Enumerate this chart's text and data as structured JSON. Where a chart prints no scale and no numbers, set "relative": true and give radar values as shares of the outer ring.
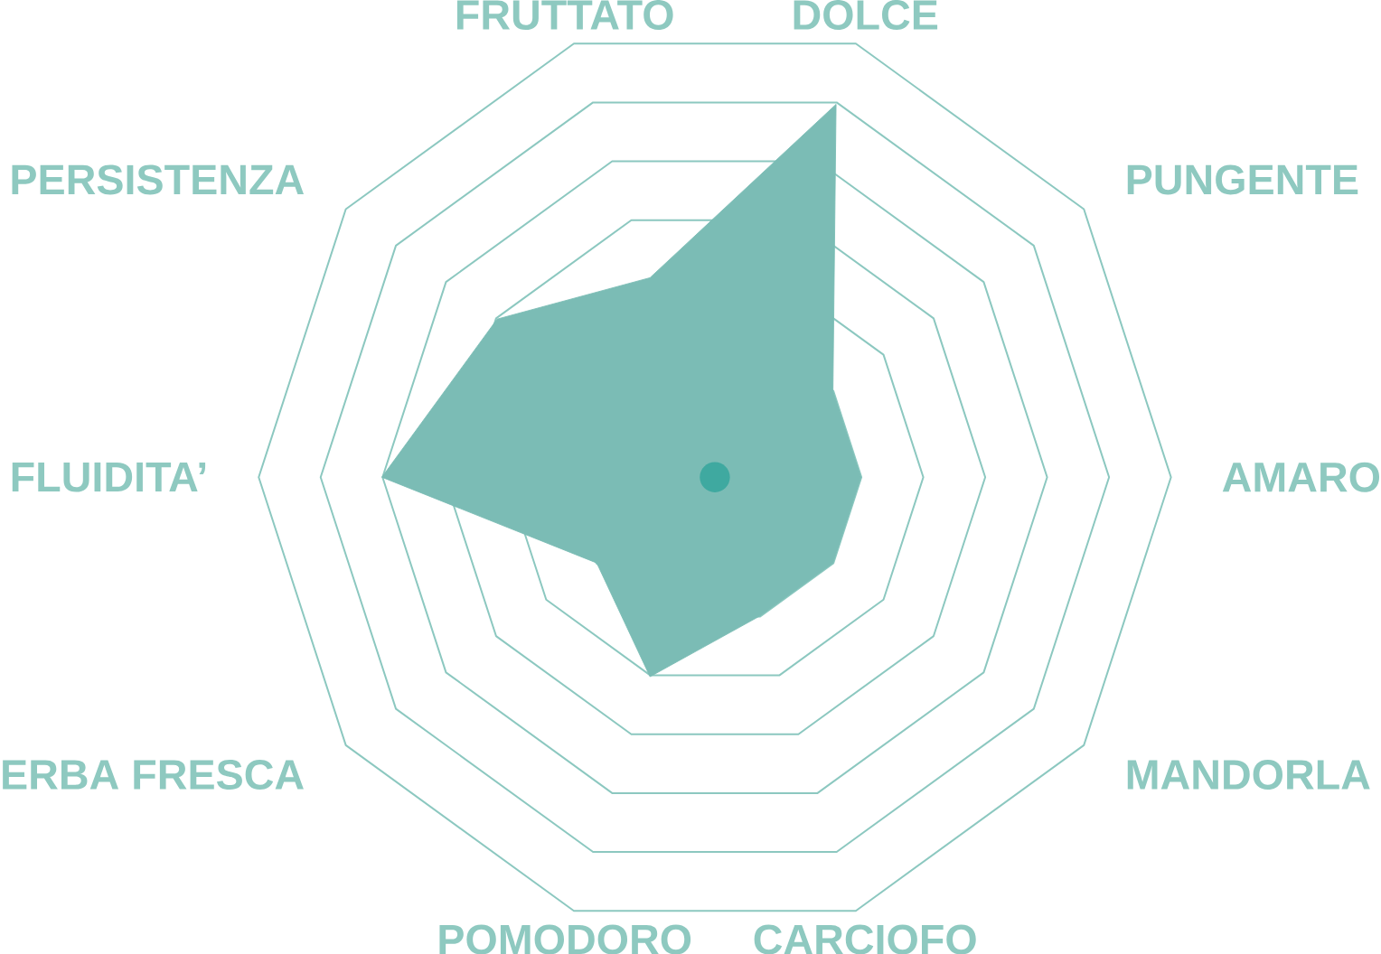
{
  "chart_data": {
    "type": "radar",
    "relative": true,
    "grid": true,
    "categories": [
      "DOLCE",
      "PUNGENTE",
      "AMARO",
      "MANDORLA",
      "CARCIOFO",
      "POMODORO",
      "ERBA FRESCA",
      "FLUIDITA’",
      "PERSISTENZA",
      "FRUTTATO"
    ],
    "series": [
      {
        "color": "#7bbcb5",
        "values": [
          0.86,
          0.32,
          0.32,
          0.32,
          0.32,
          0.46,
          0.32,
          0.73,
          0.59,
          0.46
        ]
      }
    ]
  }
}
